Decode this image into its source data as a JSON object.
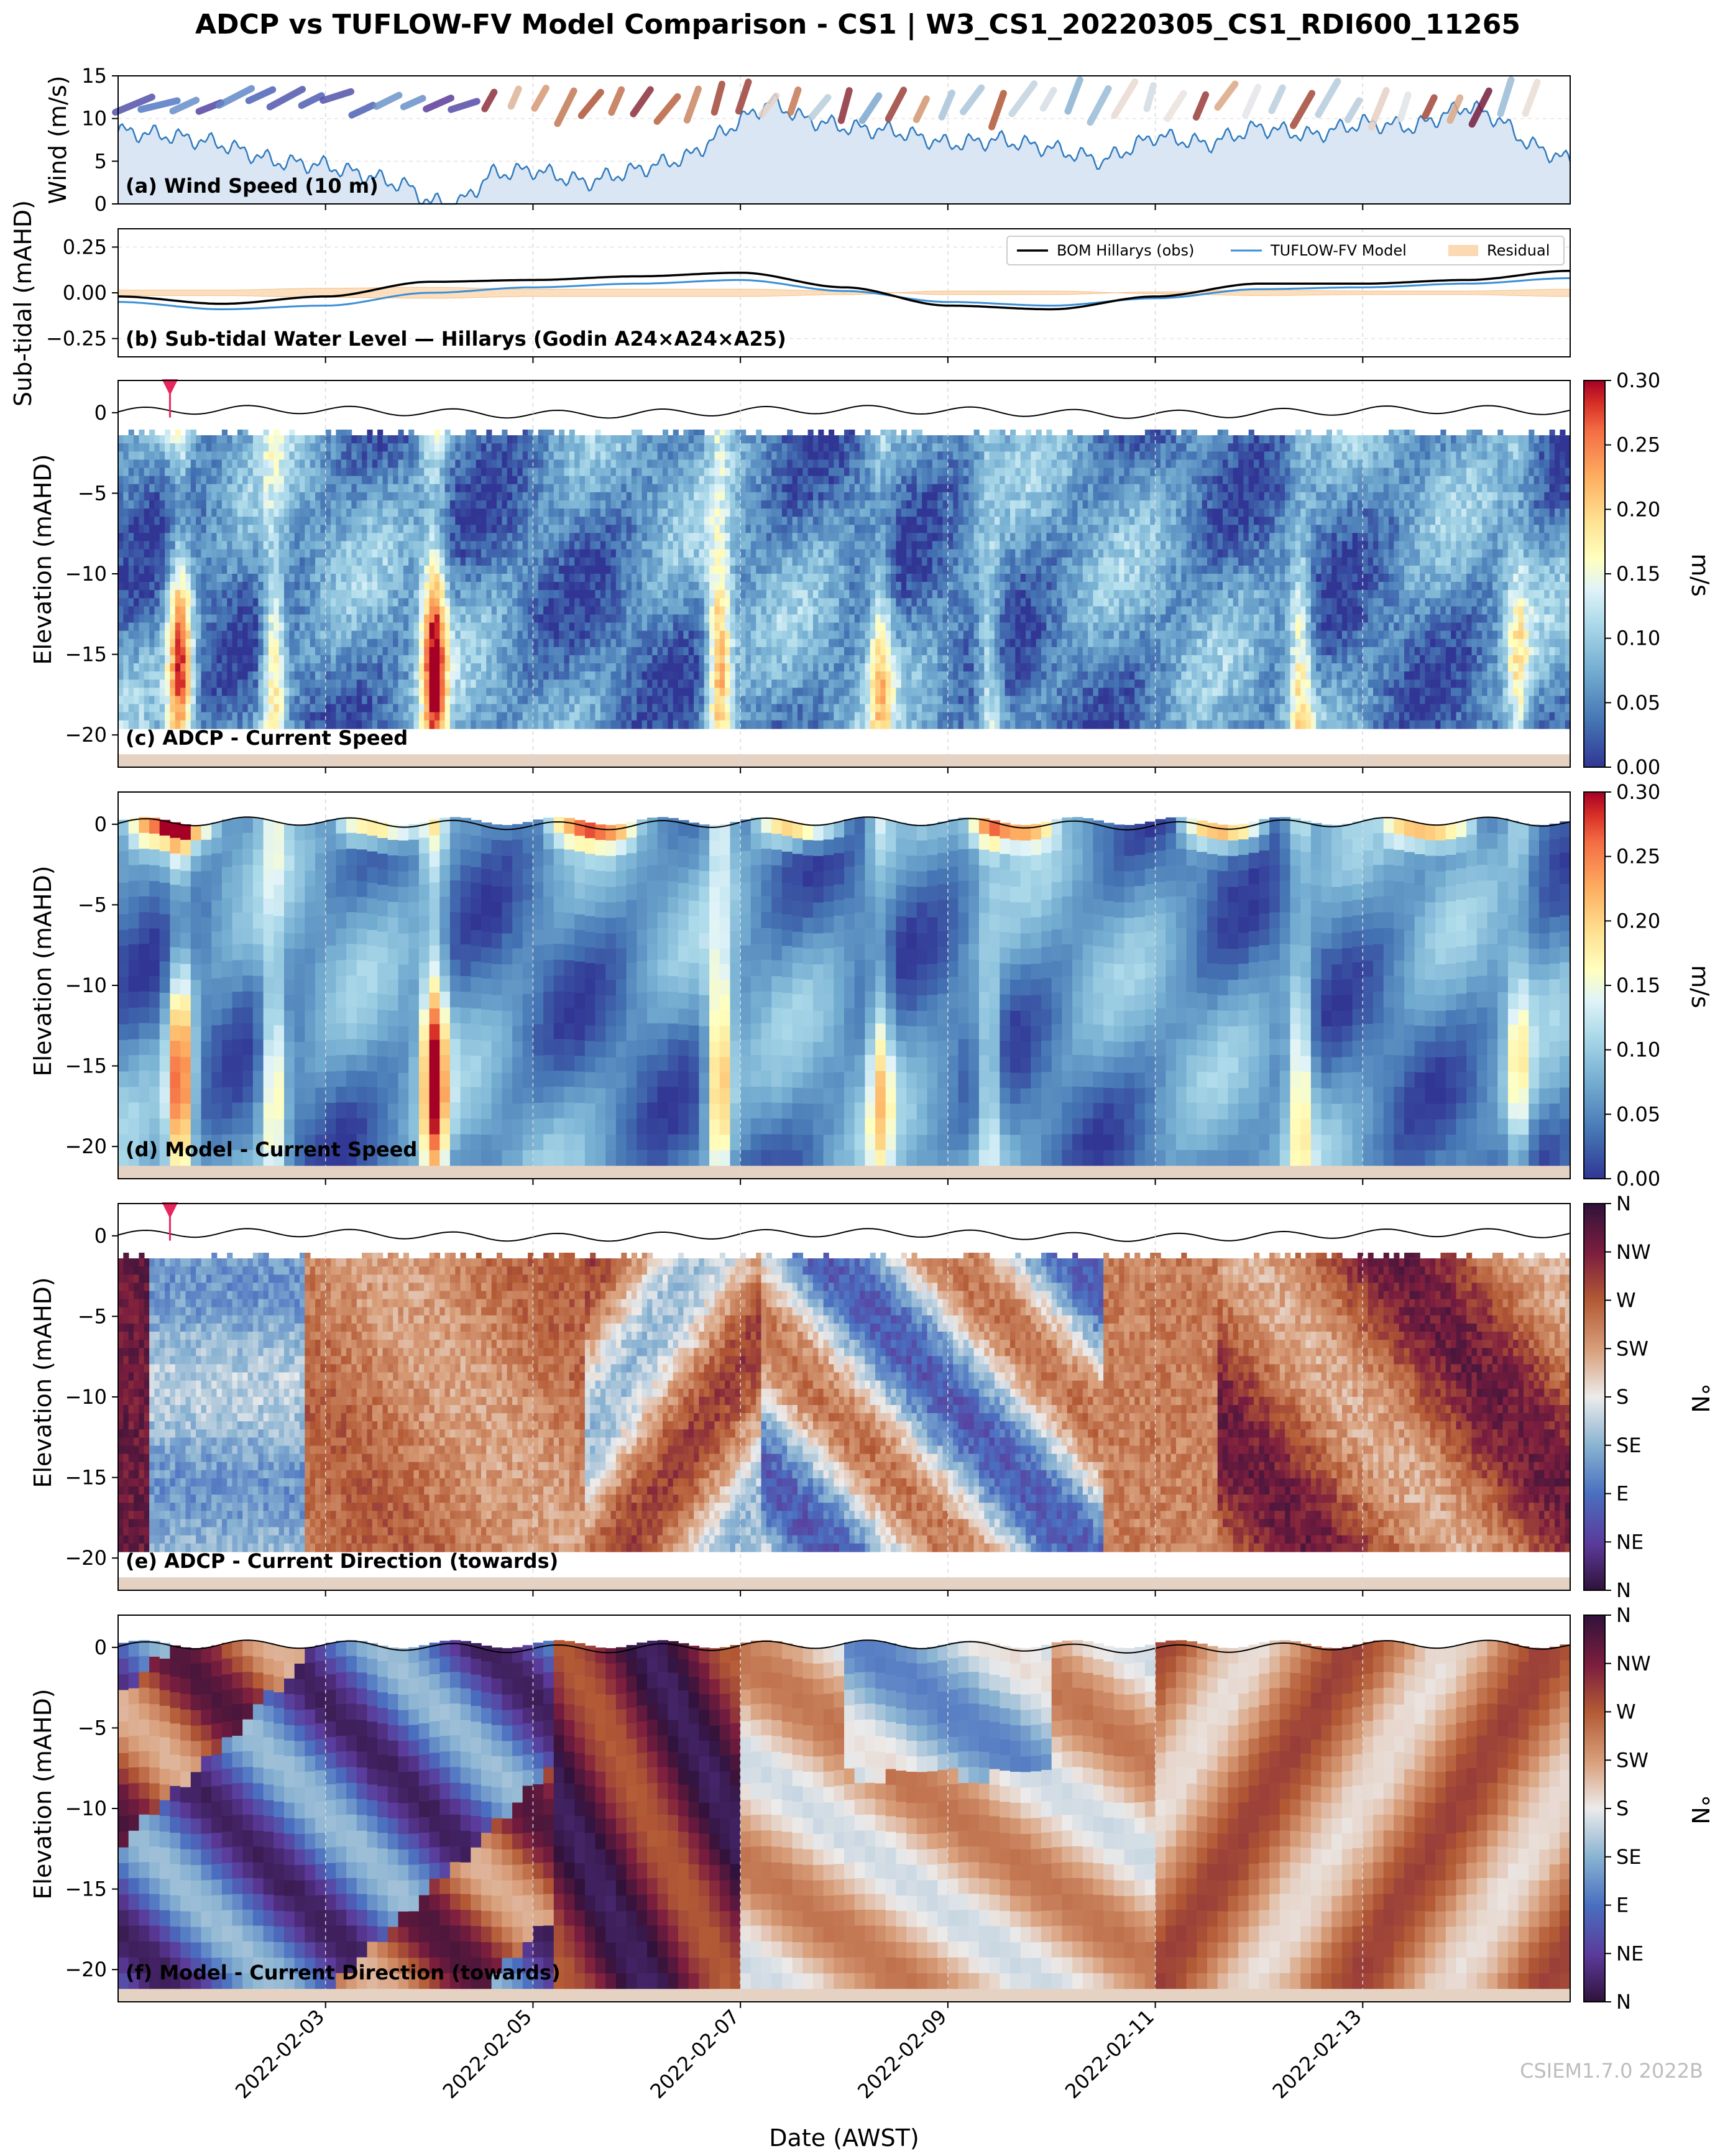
{
  "title": "ADCP vs TUFLOW-FV Model Comparison - CS1 | W3_CS1_20220305_CS1_RDI600_11265",
  "watermark": "CSIEM1.7.0 2022B",
  "xlabel": "Date (AWST)",
  "x_ticks": [
    "2022-02-03",
    "2022-02-05",
    "2022-02-07",
    "2022-02-09",
    "2022-02-11",
    "2022-02-13"
  ],
  "x_tick_days": [
    2,
    4,
    6,
    8,
    10,
    12
  ],
  "x_range_days": [
    0,
    14
  ],
  "colors": {
    "wind_line": "#2f7bbf",
    "wind_fill": "#dbe6f4",
    "obs_line": "#000000",
    "model_line": "#3a8fd6",
    "residual_fill": "#fbd9b3",
    "seabed": "#e6d2c2",
    "surface_marker": "#e8265e"
  },
  "chart_data": [
    {
      "type": "area",
      "panel": "wind",
      "label": "(a) Wind Speed (10 m)",
      "ylabel": "Wind (m/s)",
      "ylim": [
        0,
        15
      ],
      "y_ticks": [
        "0",
        "5",
        "10",
        "15"
      ],
      "y_tick_values": [
        0,
        5,
        10,
        15
      ],
      "x": [
        0,
        0.5,
        1,
        1.5,
        2,
        2.5,
        2.8,
        3.0,
        3.3,
        3.6,
        4,
        4.5,
        5,
        5.5,
        5.9,
        6.1,
        6.3,
        6.6,
        7,
        7.5,
        8,
        8.5,
        9,
        9.5,
        10,
        10.5,
        11,
        11.5,
        12,
        12.5,
        13,
        13.3,
        13.6,
        14
      ],
      "values": [
        8.5,
        8.0,
        7.0,
        5.0,
        4.5,
        3.0,
        2.0,
        0.2,
        0.1,
        3.5,
        4.0,
        2.5,
        4.0,
        5.5,
        9.0,
        10.5,
        12.0,
        10.0,
        9.0,
        8.5,
        7.0,
        7.5,
        6.5,
        5.0,
        8.0,
        7.0,
        9.0,
        8.0,
        9.5,
        9.0,
        11.5,
        10.0,
        7.0,
        5.0
      ]
    },
    {
      "type": "line",
      "panel": "subtidal",
      "label": "(b) Sub-tidal Water Level — Hillarys (Godin A24×A24×A25)",
      "ylabel": "Sub-tidal (mAHD)",
      "ylim": [
        -0.35,
        0.35
      ],
      "y_ticks": [
        "−0.25",
        "0.00",
        "0.25"
      ],
      "y_tick_values": [
        -0.25,
        0,
        0.25
      ],
      "x": [
        0,
        1,
        2,
        3,
        4,
        5,
        6,
        7,
        8,
        9,
        10,
        11,
        12,
        13,
        14
      ],
      "series": [
        {
          "name": "BOM Hillarys (obs)",
          "values": [
            -0.02,
            -0.06,
            -0.02,
            0.06,
            0.07,
            0.09,
            0.11,
            0.03,
            -0.07,
            -0.09,
            -0.02,
            0.05,
            0.05,
            0.07,
            0.12
          ]
        },
        {
          "name": "TUFLOW-FV Model",
          "values": [
            -0.05,
            -0.09,
            -0.07,
            0.0,
            0.03,
            0.05,
            0.07,
            0.01,
            -0.05,
            -0.07,
            -0.03,
            0.02,
            0.03,
            0.05,
            0.08
          ]
        },
        {
          "name": "Residual",
          "values": [
            0.03,
            0.03,
            0.05,
            0.06,
            0.04,
            0.04,
            0.04,
            0.02,
            -0.02,
            -0.02,
            0.01,
            0.03,
            0.02,
            0.02,
            0.04
          ]
        }
      ]
    },
    {
      "type": "heatmap",
      "panel": "adcp_speed",
      "label": "(c) ADCP - Current Speed",
      "ylabel": "Elevation (mAHD)",
      "ylim": [
        -22,
        2
      ],
      "y_ticks": [
        "−20",
        "−15",
        "−10",
        "−5",
        "0"
      ],
      "y_tick_values": [
        -20,
        -15,
        -10,
        -5,
        0
      ],
      "z_range": [
        0,
        0.3
      ],
      "colorbar_label": "m/s",
      "colorbar_ticks": [
        "0.00",
        "0.05",
        "0.10",
        "0.15",
        "0.20",
        "0.25",
        "0.30"
      ],
      "colorbar_values": [
        0,
        0.05,
        0.1,
        0.15,
        0.2,
        0.25,
        0.3
      ],
      "data_top": -1.4,
      "data_bottom": -19.6,
      "seabed": -21.2,
      "marker_day": 0.5
    },
    {
      "type": "heatmap",
      "panel": "model_speed",
      "label": "(d) Model - Current Speed",
      "ylabel": "Elevation (mAHD)",
      "ylim": [
        -22,
        2
      ],
      "y_ticks": [
        "−20",
        "−15",
        "−10",
        "−5",
        "0"
      ],
      "y_tick_values": [
        -20,
        -15,
        -10,
        -5,
        0
      ],
      "z_range": [
        0,
        0.3
      ],
      "colorbar_label": "m/s",
      "colorbar_ticks": [
        "0.00",
        "0.05",
        "0.10",
        "0.15",
        "0.20",
        "0.25",
        "0.30"
      ],
      "colorbar_values": [
        0,
        0.05,
        0.1,
        0.15,
        0.2,
        0.25,
        0.3
      ],
      "seabed": -21.2
    },
    {
      "type": "heatmap",
      "panel": "adcp_dir",
      "label": "(e) ADCP - Current Direction (towards)",
      "ylabel": "Elevation (mAHD)",
      "ylim": [
        -22,
        2
      ],
      "y_ticks": [
        "−20",
        "−15",
        "−10",
        "−5",
        "0"
      ],
      "y_tick_values": [
        -20,
        -15,
        -10,
        -5,
        0
      ],
      "z_range": [
        0,
        360
      ],
      "colorbar_label": "°N",
      "colorbar_ticks": [
        "N",
        "NE",
        "E",
        "SE",
        "S",
        "SW",
        "W",
        "NW",
        "N"
      ],
      "colorbar_values": [
        0,
        45,
        90,
        135,
        180,
        225,
        270,
        315,
        360
      ],
      "data_top": -1.4,
      "data_bottom": -19.6,
      "seabed": -21.2,
      "marker_day": 0.5
    },
    {
      "type": "heatmap",
      "panel": "model_dir",
      "label": "(f) Model - Current Direction (towards)",
      "ylabel": "Elevation (mAHD)",
      "ylim": [
        -22,
        2
      ],
      "y_ticks": [
        "−20",
        "−15",
        "−10",
        "−5",
        "0"
      ],
      "y_tick_values": [
        -20,
        -15,
        -10,
        -5,
        0
      ],
      "z_range": [
        0,
        360
      ],
      "colorbar_label": "°N",
      "colorbar_ticks": [
        "N",
        "NE",
        "E",
        "SE",
        "S",
        "SW",
        "W",
        "NW",
        "N"
      ],
      "colorbar_values": [
        0,
        45,
        90,
        135,
        180,
        225,
        270,
        315,
        360
      ],
      "seabed": -21.2
    }
  ]
}
